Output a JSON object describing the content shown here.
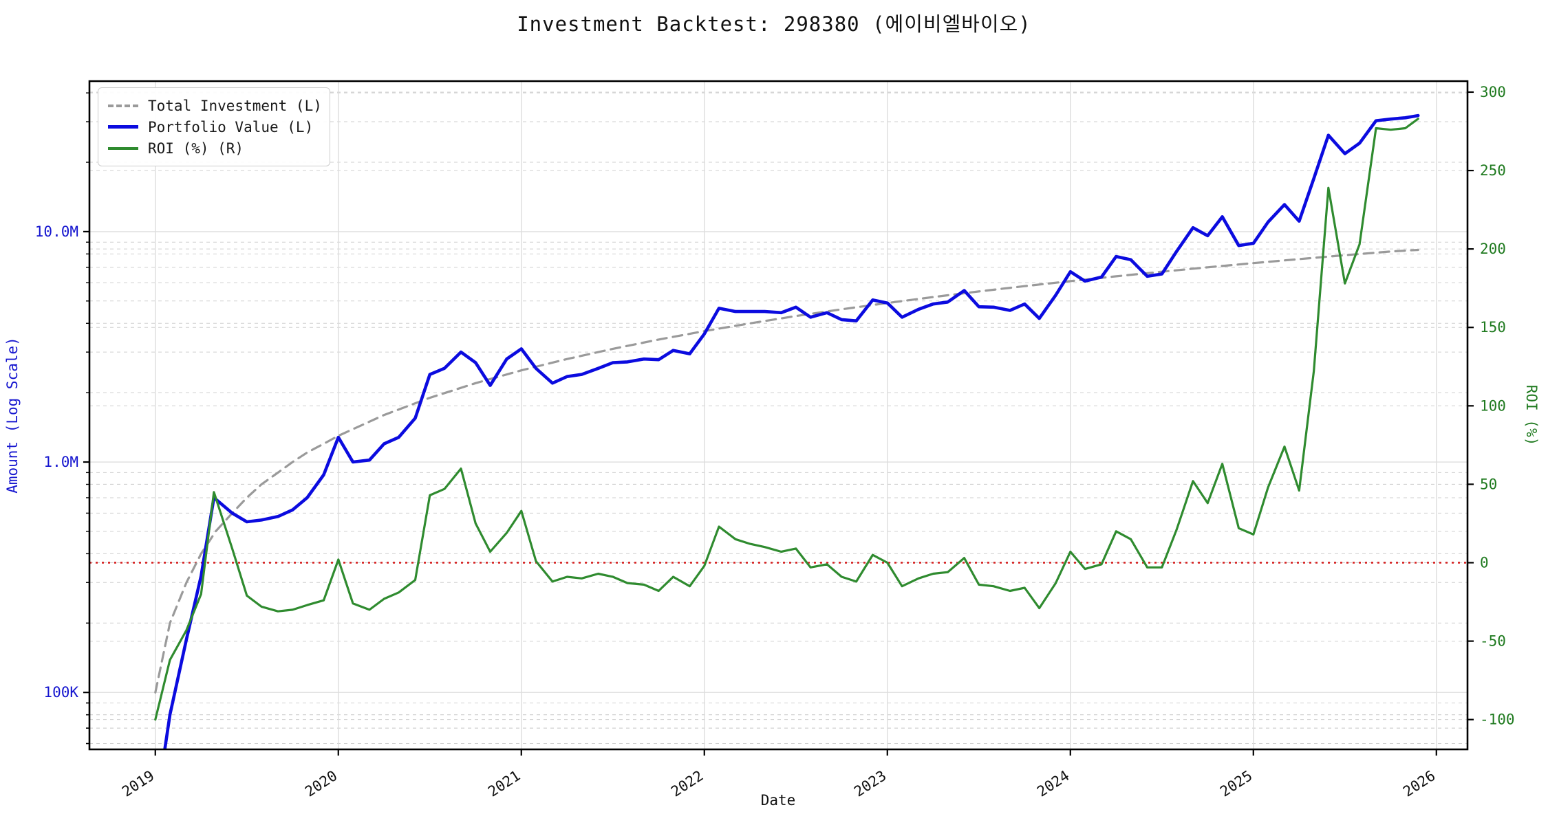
{
  "title": "Investment Backtest: 298380 (에이비엘바이오)",
  "colors": {
    "portfolio": "#0b0bdf",
    "investment": "#9a9a9a",
    "roi": "#2f8b2f",
    "zero_line": "#d62020",
    "left_axis_text": "#1515cf",
    "right_axis_text": "#1f7a1f",
    "grid_minor": "#cfcfcf",
    "grid_major": "#dddddd",
    "spine": "#000000"
  },
  "legend": {
    "items": [
      {
        "label": "Total Investment (L)",
        "series": "investment",
        "style": "dashed"
      },
      {
        "label": "Portfolio Value (L)",
        "series": "portfolio",
        "style": "solid"
      },
      {
        "label": "ROI (%) (R)",
        "series": "roi",
        "style": "solid"
      }
    ]
  },
  "chart_data": {
    "type": "line",
    "title": "Investment Backtest: 298380 (에이비엘바이오)",
    "xlabel": "Date",
    "ylabel_left": "Amount (Log Scale)",
    "ylabel_right": "ROI (%)",
    "x_unit": "year",
    "left_unit": "million KRW (log scale)",
    "right_unit": "percent",
    "xlim": [
      2018.64,
      2026.17
    ],
    "ylim_left_millions": [
      0.0566,
      45.0
    ],
    "left_log": true,
    "ylim_right": [
      -119,
      307
    ],
    "x_ticks": [
      2019,
      2020,
      2021,
      2022,
      2023,
      2024,
      2025,
      2026
    ],
    "y_ticks_left": [
      {
        "v": 0.1,
        "label": "100K"
      },
      {
        "v": 1.0,
        "label": "1.0M"
      },
      {
        "v": 10.0,
        "label": "10.0M"
      }
    ],
    "y_ticks_right": [
      300,
      250,
      200,
      150,
      100,
      50,
      0,
      -50,
      -100
    ],
    "grid": true,
    "legend_position": "upper-left",
    "zero_roi_reference_line": {
      "value": 0,
      "axis": "right",
      "color": "#d62020",
      "style": "dotted"
    },
    "series": [
      {
        "name": "Total Investment (L)",
        "axis": "left",
        "style": "dashed",
        "color_key": "investment",
        "points": [
          [
            2019.0,
            0.1
          ],
          [
            2019.08,
            0.2
          ],
          [
            2019.17,
            0.3
          ],
          [
            2019.25,
            0.4
          ],
          [
            2019.33,
            0.5
          ],
          [
            2019.42,
            0.6
          ],
          [
            2019.5,
            0.7
          ],
          [
            2019.58,
            0.8
          ],
          [
            2019.67,
            0.9
          ],
          [
            2019.75,
            1.0
          ],
          [
            2019.83,
            1.1
          ],
          [
            2019.92,
            1.2
          ],
          [
            2020.0,
            1.3
          ],
          [
            2020.25,
            1.6
          ],
          [
            2020.5,
            1.9
          ],
          [
            2020.75,
            2.2
          ],
          [
            2021.0,
            2.5
          ],
          [
            2021.25,
            2.8
          ],
          [
            2021.5,
            3.1
          ],
          [
            2021.75,
            3.4
          ],
          [
            2022.0,
            3.7
          ],
          [
            2022.25,
            4.0
          ],
          [
            2022.5,
            4.3
          ],
          [
            2022.75,
            4.6
          ],
          [
            2023.0,
            4.9
          ],
          [
            2023.25,
            5.2
          ],
          [
            2023.5,
            5.5
          ],
          [
            2023.75,
            5.8
          ],
          [
            2024.0,
            6.1
          ],
          [
            2024.25,
            6.4
          ],
          [
            2024.5,
            6.7
          ],
          [
            2024.75,
            7.0
          ],
          [
            2025.0,
            7.3
          ],
          [
            2025.25,
            7.6
          ],
          [
            2025.5,
            7.9
          ],
          [
            2025.75,
            8.2
          ],
          [
            2025.9,
            8.33
          ]
        ]
      },
      {
        "name": "Portfolio Value (L)",
        "axis": "left",
        "style": "solid",
        "color_key": "portfolio",
        "points": [
          [
            2019.0,
            0.03
          ],
          [
            2019.08,
            0.08
          ],
          [
            2019.17,
            0.17
          ],
          [
            2019.25,
            0.32
          ],
          [
            2019.32,
            0.7
          ],
          [
            2019.42,
            0.6
          ],
          [
            2019.5,
            0.55
          ],
          [
            2019.58,
            0.56
          ],
          [
            2019.67,
            0.58
          ],
          [
            2019.75,
            0.62
          ],
          [
            2019.83,
            0.7
          ],
          [
            2019.92,
            0.88
          ],
          [
            2020.0,
            1.28
          ],
          [
            2020.08,
            1.0
          ],
          [
            2020.17,
            1.02
          ],
          [
            2020.25,
            1.2
          ],
          [
            2020.33,
            1.28
          ],
          [
            2020.42,
            1.55
          ],
          [
            2020.5,
            2.4
          ],
          [
            2020.58,
            2.55
          ],
          [
            2020.67,
            3.0
          ],
          [
            2020.75,
            2.7
          ],
          [
            2020.83,
            2.15
          ],
          [
            2020.92,
            2.8
          ],
          [
            2021.0,
            3.1
          ],
          [
            2021.08,
            2.55
          ],
          [
            2021.17,
            2.2
          ],
          [
            2021.25,
            2.35
          ],
          [
            2021.33,
            2.4
          ],
          [
            2021.42,
            2.55
          ],
          [
            2021.5,
            2.7
          ],
          [
            2021.58,
            2.72
          ],
          [
            2021.67,
            2.8
          ],
          [
            2021.75,
            2.78
          ],
          [
            2021.83,
            3.05
          ],
          [
            2021.92,
            2.95
          ],
          [
            2022.0,
            3.6
          ],
          [
            2022.08,
            4.65
          ],
          [
            2022.17,
            4.5
          ],
          [
            2022.25,
            4.5
          ],
          [
            2022.33,
            4.5
          ],
          [
            2022.42,
            4.45
          ],
          [
            2022.5,
            4.7
          ],
          [
            2022.58,
            4.25
          ],
          [
            2022.67,
            4.45
          ],
          [
            2022.75,
            4.15
          ],
          [
            2022.83,
            4.1
          ],
          [
            2022.92,
            5.05
          ],
          [
            2023.0,
            4.9
          ],
          [
            2023.08,
            4.25
          ],
          [
            2023.17,
            4.6
          ],
          [
            2023.25,
            4.85
          ],
          [
            2023.33,
            4.95
          ],
          [
            2023.42,
            5.55
          ],
          [
            2023.5,
            4.72
          ],
          [
            2023.58,
            4.7
          ],
          [
            2023.67,
            4.55
          ],
          [
            2023.75,
            4.85
          ],
          [
            2023.83,
            4.2
          ],
          [
            2023.92,
            5.3
          ],
          [
            2024.0,
            6.7
          ],
          [
            2024.08,
            6.1
          ],
          [
            2024.17,
            6.35
          ],
          [
            2024.25,
            7.8
          ],
          [
            2024.33,
            7.55
          ],
          [
            2024.42,
            6.4
          ],
          [
            2024.5,
            6.55
          ],
          [
            2024.58,
            8.2
          ],
          [
            2024.67,
            10.4
          ],
          [
            2024.75,
            9.6
          ],
          [
            2024.83,
            11.6
          ],
          [
            2024.92,
            8.7
          ],
          [
            2025.0,
            8.9
          ],
          [
            2025.08,
            11.0
          ],
          [
            2025.17,
            13.1
          ],
          [
            2025.25,
            11.1
          ],
          [
            2025.33,
            17.0
          ],
          [
            2025.41,
            26.2
          ],
          [
            2025.5,
            21.8
          ],
          [
            2025.58,
            24.2
          ],
          [
            2025.67,
            30.3
          ],
          [
            2025.75,
            30.8
          ],
          [
            2025.83,
            31.2
          ],
          [
            2025.9,
            31.9
          ]
        ]
      },
      {
        "name": "ROI (%) (R)",
        "axis": "right",
        "style": "solid",
        "color_key": "roi",
        "points": [
          [
            2019.0,
            -100
          ],
          [
            2019.08,
            -62
          ],
          [
            2019.17,
            -43
          ],
          [
            2019.25,
            -20
          ],
          [
            2019.32,
            45
          ],
          [
            2019.42,
            9
          ],
          [
            2019.5,
            -21
          ],
          [
            2019.58,
            -28
          ],
          [
            2019.67,
            -31
          ],
          [
            2019.75,
            -30
          ],
          [
            2019.83,
            -27
          ],
          [
            2019.92,
            -24
          ],
          [
            2020.0,
            2
          ],
          [
            2020.08,
            -26
          ],
          [
            2020.17,
            -30
          ],
          [
            2020.25,
            -23
          ],
          [
            2020.33,
            -19
          ],
          [
            2020.42,
            -11
          ],
          [
            2020.5,
            43
          ],
          [
            2020.58,
            47
          ],
          [
            2020.67,
            60
          ],
          [
            2020.75,
            25
          ],
          [
            2020.83,
            7
          ],
          [
            2020.92,
            19
          ],
          [
            2021.0,
            33
          ],
          [
            2021.08,
            1
          ],
          [
            2021.17,
            -12
          ],
          [
            2021.25,
            -9
          ],
          [
            2021.33,
            -10
          ],
          [
            2021.42,
            -7
          ],
          [
            2021.5,
            -9
          ],
          [
            2021.58,
            -13
          ],
          [
            2021.67,
            -14
          ],
          [
            2021.75,
            -18
          ],
          [
            2021.83,
            -9
          ],
          [
            2021.92,
            -15
          ],
          [
            2022.0,
            -2
          ],
          [
            2022.08,
            23
          ],
          [
            2022.17,
            15
          ],
          [
            2022.25,
            12
          ],
          [
            2022.33,
            10
          ],
          [
            2022.42,
            7
          ],
          [
            2022.5,
            9
          ],
          [
            2022.58,
            -3
          ],
          [
            2022.67,
            -1
          ],
          [
            2022.75,
            -9
          ],
          [
            2022.83,
            -12
          ],
          [
            2022.92,
            5
          ],
          [
            2023.0,
            0
          ],
          [
            2023.08,
            -15
          ],
          [
            2023.17,
            -10
          ],
          [
            2023.25,
            -7
          ],
          [
            2023.33,
            -6
          ],
          [
            2023.42,
            3
          ],
          [
            2023.5,
            -14
          ],
          [
            2023.58,
            -15
          ],
          [
            2023.67,
            -18
          ],
          [
            2023.75,
            -16
          ],
          [
            2023.83,
            -29
          ],
          [
            2023.92,
            -13
          ],
          [
            2024.0,
            7
          ],
          [
            2024.08,
            -4
          ],
          [
            2024.17,
            -1
          ],
          [
            2024.25,
            20
          ],
          [
            2024.33,
            15
          ],
          [
            2024.42,
            -3
          ],
          [
            2024.5,
            -3
          ],
          [
            2024.58,
            21
          ],
          [
            2024.67,
            52
          ],
          [
            2024.75,
            38
          ],
          [
            2024.83,
            63
          ],
          [
            2024.92,
            22
          ],
          [
            2025.0,
            18
          ],
          [
            2025.08,
            48
          ],
          [
            2025.17,
            74
          ],
          [
            2025.25,
            46
          ],
          [
            2025.33,
            122
          ],
          [
            2025.41,
            239
          ],
          [
            2025.5,
            178
          ],
          [
            2025.58,
            203
          ],
          [
            2025.67,
            277
          ],
          [
            2025.75,
            276
          ],
          [
            2025.83,
            277
          ],
          [
            2025.9,
            283
          ]
        ]
      }
    ]
  }
}
